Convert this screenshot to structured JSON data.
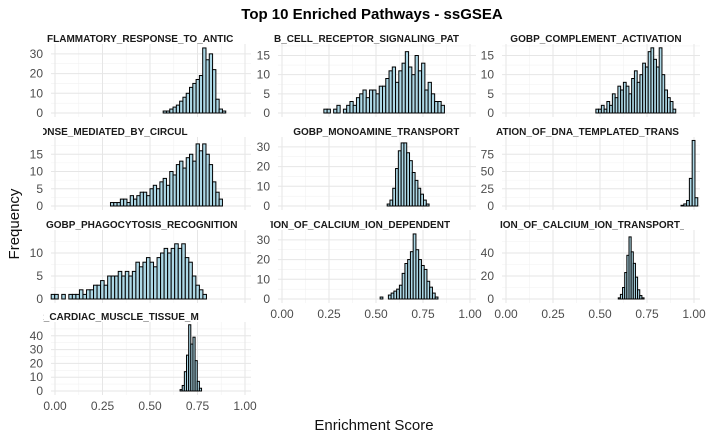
{
  "chart_data": {
    "type": "bar",
    "title": "Top 10 Enriched Pathways - ssGSEA",
    "xlabel": "Enrichment Score",
    "ylabel": "Frequency",
    "bar_color": "#add8e6",
    "bar_edge_color": "#000000",
    "grid": true,
    "xlim": [
      0,
      1
    ],
    "x_ticks": [
      "0.00",
      "0.25",
      "0.50",
      "0.75",
      "1.00"
    ],
    "panels": [
      {
        "name": "FLAMMATORY_RESPONSE_TO_ANTIC",
        "ylim": [
          0,
          35
        ],
        "y_ticks": [
          0,
          10,
          20,
          30
        ],
        "counts": [
          0,
          0,
          0,
          0,
          0,
          0,
          0,
          0,
          0,
          0,
          0,
          0,
          0,
          0,
          0,
          0,
          0,
          0,
          0,
          0,
          0,
          0,
          0,
          0,
          0,
          0,
          0,
          0,
          0,
          0,
          0,
          0,
          0,
          0,
          1,
          1,
          2,
          3,
          4,
          6,
          8,
          10,
          13,
          15,
          17,
          19,
          33,
          27,
          30,
          22,
          7,
          2,
          1,
          0,
          0,
          0,
          0,
          0,
          0,
          0
        ]
      },
      {
        "name": "B_CELL_RECEPTOR_SIGNALING_PAT",
        "ylim": [
          0,
          18
        ],
        "y_ticks": [
          0,
          5,
          10,
          15
        ],
        "counts": [
          0,
          0,
          0,
          0,
          0,
          0,
          0,
          0,
          0,
          0,
          0,
          0,
          0,
          0,
          1,
          1,
          0,
          1,
          2,
          0,
          1,
          2,
          3,
          2,
          4,
          5,
          6,
          4,
          6,
          6,
          5,
          7,
          7,
          9,
          11,
          12,
          8,
          11,
          13,
          16,
          12,
          10,
          15,
          11,
          13,
          6,
          8,
          5,
          3,
          3,
          2,
          0,
          0,
          0,
          0,
          0,
          0,
          0,
          0,
          0
        ]
      },
      {
        "name": "GOBP_COMPLEMENT_ACTIVATION",
        "ylim": [
          0,
          18
        ],
        "y_ticks": [
          0,
          5,
          10,
          15
        ],
        "counts": [
          0,
          0,
          0,
          0,
          0,
          0,
          0,
          0,
          0,
          0,
          0,
          0,
          0,
          0,
          0,
          0,
          0,
          0,
          0,
          0,
          0,
          0,
          0,
          0,
          0,
          0,
          0,
          0,
          0,
          0,
          0,
          0,
          0,
          0,
          1,
          1,
          2,
          1,
          3,
          2,
          5,
          4,
          7,
          6,
          8,
          7,
          5,
          9,
          11,
          8,
          10,
          13,
          12,
          16,
          17,
          14,
          12,
          17,
          10,
          6,
          4,
          3,
          1,
          0,
          0,
          0,
          0,
          0,
          0,
          0,
          0
        ]
      },
      {
        "name": "E_RESPONSE_MEDIATED_BY_CIRCUL",
        "ylim": [
          0,
          20
        ],
        "y_ticks": [
          0,
          5,
          10,
          15
        ],
        "counts": [
          0,
          0,
          0,
          0,
          0,
          0,
          0,
          0,
          0,
          0,
          0,
          0,
          0,
          0,
          0,
          0,
          0,
          0,
          1,
          1,
          1,
          2,
          2,
          1,
          3,
          2,
          3,
          4,
          4,
          3,
          5,
          6,
          5,
          7,
          8,
          6,
          10,
          9,
          12,
          13,
          11,
          14,
          15,
          13,
          18,
          16,
          18,
          15,
          12,
          7,
          4,
          2,
          0,
          0,
          0,
          0,
          0,
          0,
          0,
          0
        ]
      },
      {
        "name": "GOBP_MONOAMINE_TRANSPORT",
        "ylim": [
          0,
          35
        ],
        "y_ticks": [
          0,
          10,
          20,
          30
        ],
        "counts": [
          0,
          0,
          0,
          0,
          0,
          0,
          0,
          0,
          0,
          0,
          0,
          0,
          0,
          0,
          0,
          0,
          0,
          0,
          0,
          0,
          0,
          0,
          0,
          0,
          0,
          0,
          0,
          0,
          0,
          0,
          0,
          0,
          0,
          0,
          0,
          0,
          0,
          0,
          0,
          1,
          3,
          9,
          19,
          28,
          32,
          32,
          27,
          23,
          17,
          13,
          9,
          6,
          3,
          1,
          0,
          0,
          0,
          0,
          0,
          0,
          0,
          0,
          0,
          0,
          0,
          0,
          0,
          0,
          0,
          0
        ]
      },
      {
        "name": "ATION_OF_DNA_TEMPLATED_TRANS",
        "ylim": [
          0,
          100
        ],
        "y_ticks": [
          0,
          25,
          50,
          75
        ],
        "counts": [
          0,
          0,
          0,
          0,
          0,
          0,
          0,
          0,
          0,
          0,
          0,
          0,
          0,
          0,
          0,
          0,
          0,
          0,
          0,
          0,
          0,
          0,
          0,
          0,
          0,
          0,
          0,
          0,
          0,
          0,
          0,
          0,
          0,
          0,
          0,
          0,
          0,
          0,
          0,
          0,
          0,
          0,
          0,
          0,
          0,
          0,
          0,
          0,
          0,
          0,
          0,
          0,
          0,
          0,
          0,
          0,
          0,
          0,
          0,
          0,
          0,
          0,
          0,
          0,
          1,
          3,
          8,
          40,
          95,
          12
        ]
      },
      {
        "name": "GOBP_PHAGOCYTOSIS_RECOGNITION",
        "ylim": [
          0,
          15
        ],
        "y_ticks": [
          0,
          5,
          10
        ],
        "counts": [
          1,
          1,
          0,
          1,
          0,
          1,
          1,
          1,
          2,
          1,
          2,
          2,
          3,
          3,
          4,
          3,
          5,
          5,
          5,
          6,
          5,
          6,
          5,
          6,
          8,
          7,
          8,
          9,
          8,
          7,
          9,
          10,
          11,
          10,
          11,
          12,
          11,
          12,
          9,
          8,
          5,
          3,
          2,
          1,
          0,
          0,
          0,
          0,
          0,
          0,
          0,
          0,
          0,
          0,
          0,
          0
        ]
      },
      {
        "name": "ATION_OF_CALCIUM_ION_DEPENDENT",
        "ylim": [
          0,
          35
        ],
        "y_ticks": [
          0,
          10,
          20,
          30
        ],
        "counts": [
          0,
          0,
          0,
          0,
          0,
          0,
          0,
          0,
          0,
          0,
          0,
          0,
          0,
          0,
          0,
          0,
          0,
          0,
          0,
          0,
          0,
          0,
          0,
          0,
          0,
          0,
          0,
          0,
          0,
          0,
          0,
          0,
          0,
          0,
          0,
          0,
          0,
          1,
          0,
          0,
          2,
          3,
          4,
          5,
          7,
          13,
          18,
          20,
          24,
          33,
          25,
          20,
          17,
          15,
          9,
          6,
          3,
          1,
          0,
          0,
          0,
          0,
          0,
          0,
          0,
          0,
          0,
          0,
          0,
          0,
          0
        ]
      },
      {
        "name": "ION_OF_CALCIUM_ION_TRANSPORT_",
        "ylim": [
          0,
          60
        ],
        "y_ticks": [
          0,
          20,
          40
        ],
        "counts": [
          0,
          0,
          0,
          0,
          0,
          0,
          0,
          0,
          0,
          0,
          0,
          0,
          0,
          0,
          0,
          0,
          0,
          0,
          0,
          0,
          0,
          0,
          0,
          0,
          0,
          0,
          0,
          0,
          0,
          0,
          0,
          0,
          0,
          0,
          0,
          0,
          0,
          0,
          0,
          0,
          0,
          0,
          0,
          0,
          0,
          0,
          0,
          0,
          0,
          0,
          0,
          0,
          0,
          0,
          1,
          4,
          10,
          23,
          38,
          54,
          41,
          31,
          19,
          8,
          3,
          1,
          0,
          0,
          0,
          0,
          0,
          0,
          0,
          0,
          0,
          0,
          0,
          0,
          0,
          0,
          0,
          0,
          0,
          0,
          0,
          0,
          0,
          0,
          0,
          0,
          0
        ]
      },
      {
        "name": "ULAR_CARDIAC_MUSCLE_TISSUE_M",
        "ylim": [
          0,
          50
        ],
        "y_ticks": [
          0,
          10,
          20,
          30,
          40
        ],
        "counts": [
          0,
          0,
          0,
          0,
          0,
          0,
          0,
          0,
          0,
          0,
          0,
          0,
          0,
          0,
          0,
          0,
          0,
          0,
          0,
          0,
          0,
          0,
          0,
          0,
          0,
          0,
          0,
          0,
          0,
          0,
          0,
          0,
          0,
          0,
          0,
          0,
          0,
          0,
          0,
          0,
          0,
          0,
          0,
          0,
          0,
          0,
          0,
          0,
          0,
          0,
          0,
          0,
          0,
          0,
          0,
          0,
          0,
          0,
          0,
          0,
          1,
          4,
          14,
          26,
          48,
          34,
          39,
          22,
          7,
          2,
          0,
          0,
          0,
          0,
          0,
          0,
          0,
          0,
          0,
          0,
          0,
          0,
          0,
          0,
          0,
          0,
          0,
          0,
          0,
          0,
          0,
          0
        ]
      }
    ]
  }
}
